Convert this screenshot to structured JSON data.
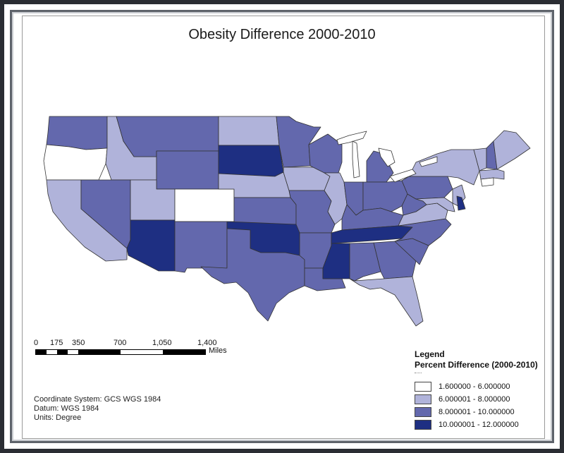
{
  "title": "Obesity Difference 2000-2010",
  "scale": {
    "ticks": [
      "0",
      "175",
      "350",
      "700",
      "1,050",
      "1,400"
    ],
    "units": "Miles"
  },
  "coordinates": {
    "system": "Coordinate System: GCS WGS 1984",
    "datum": "Datum: WGS 1984",
    "units": "Units: Degree"
  },
  "legend": {
    "title": "Legend",
    "subtitle": "Percent Difference (2000-2010)",
    "classes": [
      {
        "label": "1.600000 - 6.000000",
        "color": "#ffffff"
      },
      {
        "label": "6.000001 - 8.000000",
        "color": "#b0b3da"
      },
      {
        "label": "8.000001 - 10.000000",
        "color": "#6368ad"
      },
      {
        "label": "10.000001 - 12.000000",
        "color": "#1e2f82"
      }
    ]
  },
  "states": [
    {
      "name": "Washington",
      "class": 2
    },
    {
      "name": "Oregon",
      "class": 0
    },
    {
      "name": "California",
      "class": 1
    },
    {
      "name": "Idaho",
      "class": 1
    },
    {
      "name": "Nevada",
      "class": 2
    },
    {
      "name": "Montana",
      "class": 2
    },
    {
      "name": "Wyoming",
      "class": 2
    },
    {
      "name": "Utah",
      "class": 1
    },
    {
      "name": "Arizona",
      "class": 3
    },
    {
      "name": "Colorado",
      "class": 0
    },
    {
      "name": "New Mexico",
      "class": 2
    },
    {
      "name": "North Dakota",
      "class": 1
    },
    {
      "name": "South Dakota",
      "class": 3
    },
    {
      "name": "Nebraska",
      "class": 1
    },
    {
      "name": "Kansas",
      "class": 2
    },
    {
      "name": "Oklahoma",
      "class": 3
    },
    {
      "name": "Texas",
      "class": 2
    },
    {
      "name": "Minnesota",
      "class": 2
    },
    {
      "name": "Iowa",
      "class": 1
    },
    {
      "name": "Missouri",
      "class": 2
    },
    {
      "name": "Arkansas",
      "class": 2
    },
    {
      "name": "Louisiana",
      "class": 2
    },
    {
      "name": "Wisconsin",
      "class": 2
    },
    {
      "name": "Illinois",
      "class": 1
    },
    {
      "name": "Michigan",
      "class": 2
    },
    {
      "name": "Indiana",
      "class": 2
    },
    {
      "name": "Ohio",
      "class": 2
    },
    {
      "name": "Kentucky",
      "class": 2
    },
    {
      "name": "Tennessee",
      "class": 3
    },
    {
      "name": "Mississippi",
      "class": 3
    },
    {
      "name": "Alabama",
      "class": 2
    },
    {
      "name": "Georgia",
      "class": 2
    },
    {
      "name": "Florida",
      "class": 1
    },
    {
      "name": "South Carolina",
      "class": 2
    },
    {
      "name": "North Carolina",
      "class": 2
    },
    {
      "name": "Virginia",
      "class": 1
    },
    {
      "name": "West Virginia",
      "class": 2
    },
    {
      "name": "Pennsylvania",
      "class": 2
    },
    {
      "name": "New York",
      "class": 1
    },
    {
      "name": "Vermont",
      "class": 1
    },
    {
      "name": "New Hampshire",
      "class": 2
    },
    {
      "name": "Maine",
      "class": 1
    },
    {
      "name": "Massachusetts",
      "class": 1
    },
    {
      "name": "Connecticut",
      "class": 0
    },
    {
      "name": "New Jersey",
      "class": 1
    },
    {
      "name": "Delaware",
      "class": 3
    },
    {
      "name": "Maryland",
      "class": 1
    }
  ]
}
